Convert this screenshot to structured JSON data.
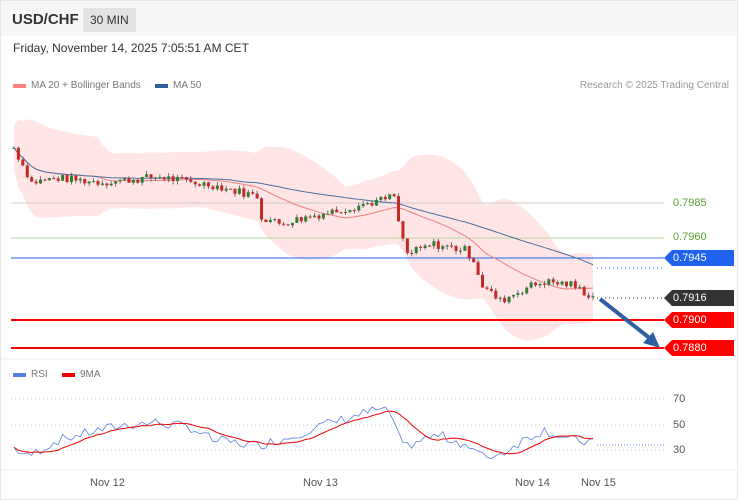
{
  "header": {
    "symbol": "USD/CHF",
    "timeframe": "30 MIN",
    "datetime": "Friday, November 14, 2025 7:05:51 AM CET"
  },
  "legend": {
    "ma20": "MA 20 + Bollinger Bands",
    "ma50": "MA 50",
    "credit": "Research © 2025 Trading Central",
    "rsi": "RSI",
    "rsi_ma": "9MA"
  },
  "levels": [
    {
      "value": "0.7985",
      "kind": "resistance-light",
      "color": "#5aa02c"
    },
    {
      "value": "0.7960",
      "kind": "resistance-light",
      "color": "#5aa02c"
    },
    {
      "value": "0.7945",
      "kind": "pivot",
      "color": "#1f62ee"
    },
    {
      "value": "0.7916",
      "kind": "last-price",
      "color": "#333333"
    },
    {
      "value": "0.7900",
      "kind": "support",
      "color": "#ff0000"
    },
    {
      "value": "0.7880",
      "kind": "support",
      "color": "#ff0000"
    }
  ],
  "rsi_axis": [
    "70",
    "50",
    "30"
  ],
  "x_axis": [
    "Nov 12",
    "Nov 13",
    "Nov 14",
    "Nov 15"
  ],
  "price_path": [
    [
      0,
      0.8025
    ],
    [
      4,
      0.8
    ],
    [
      10,
      0.8003
    ],
    [
      20,
      0.8
    ],
    [
      33,
      0.8004
    ],
    [
      40,
      0.8
    ],
    [
      45,
      0.7998
    ],
    [
      55,
      0.799
    ],
    [
      56,
      0.7975
    ],
    [
      60,
      0.797
    ],
    [
      68,
      0.7976
    ],
    [
      75,
      0.7981
    ],
    [
      83,
      0.7987
    ],
    [
      86,
      0.799
    ],
    [
      87,
      0.797
    ],
    [
      89,
      0.7948
    ],
    [
      95,
      0.7955
    ],
    [
      102,
      0.7951
    ],
    [
      104,
      0.7944
    ],
    [
      106,
      0.7925
    ],
    [
      110,
      0.7914
    ],
    [
      116,
      0.7924
    ],
    [
      120,
      0.7928
    ],
    [
      126,
      0.7926
    ],
    [
      131,
      0.7917
    ]
  ],
  "rsi_path": [
    [
      0,
      32
    ],
    [
      3,
      25
    ],
    [
      10,
      38
    ],
    [
      18,
      45
    ],
    [
      25,
      50
    ],
    [
      32,
      52
    ],
    [
      40,
      48
    ],
    [
      45,
      38
    ],
    [
      55,
      34
    ],
    [
      62,
      40
    ],
    [
      68,
      48
    ],
    [
      75,
      55
    ],
    [
      82,
      62
    ],
    [
      85,
      60
    ],
    [
      88,
      32
    ],
    [
      92,
      38
    ],
    [
      96,
      42
    ],
    [
      102,
      35
    ],
    [
      106,
      25
    ],
    [
      110,
      27
    ],
    [
      116,
      40
    ],
    [
      120,
      46
    ],
    [
      126,
      38
    ],
    [
      131,
      36
    ]
  ]
}
